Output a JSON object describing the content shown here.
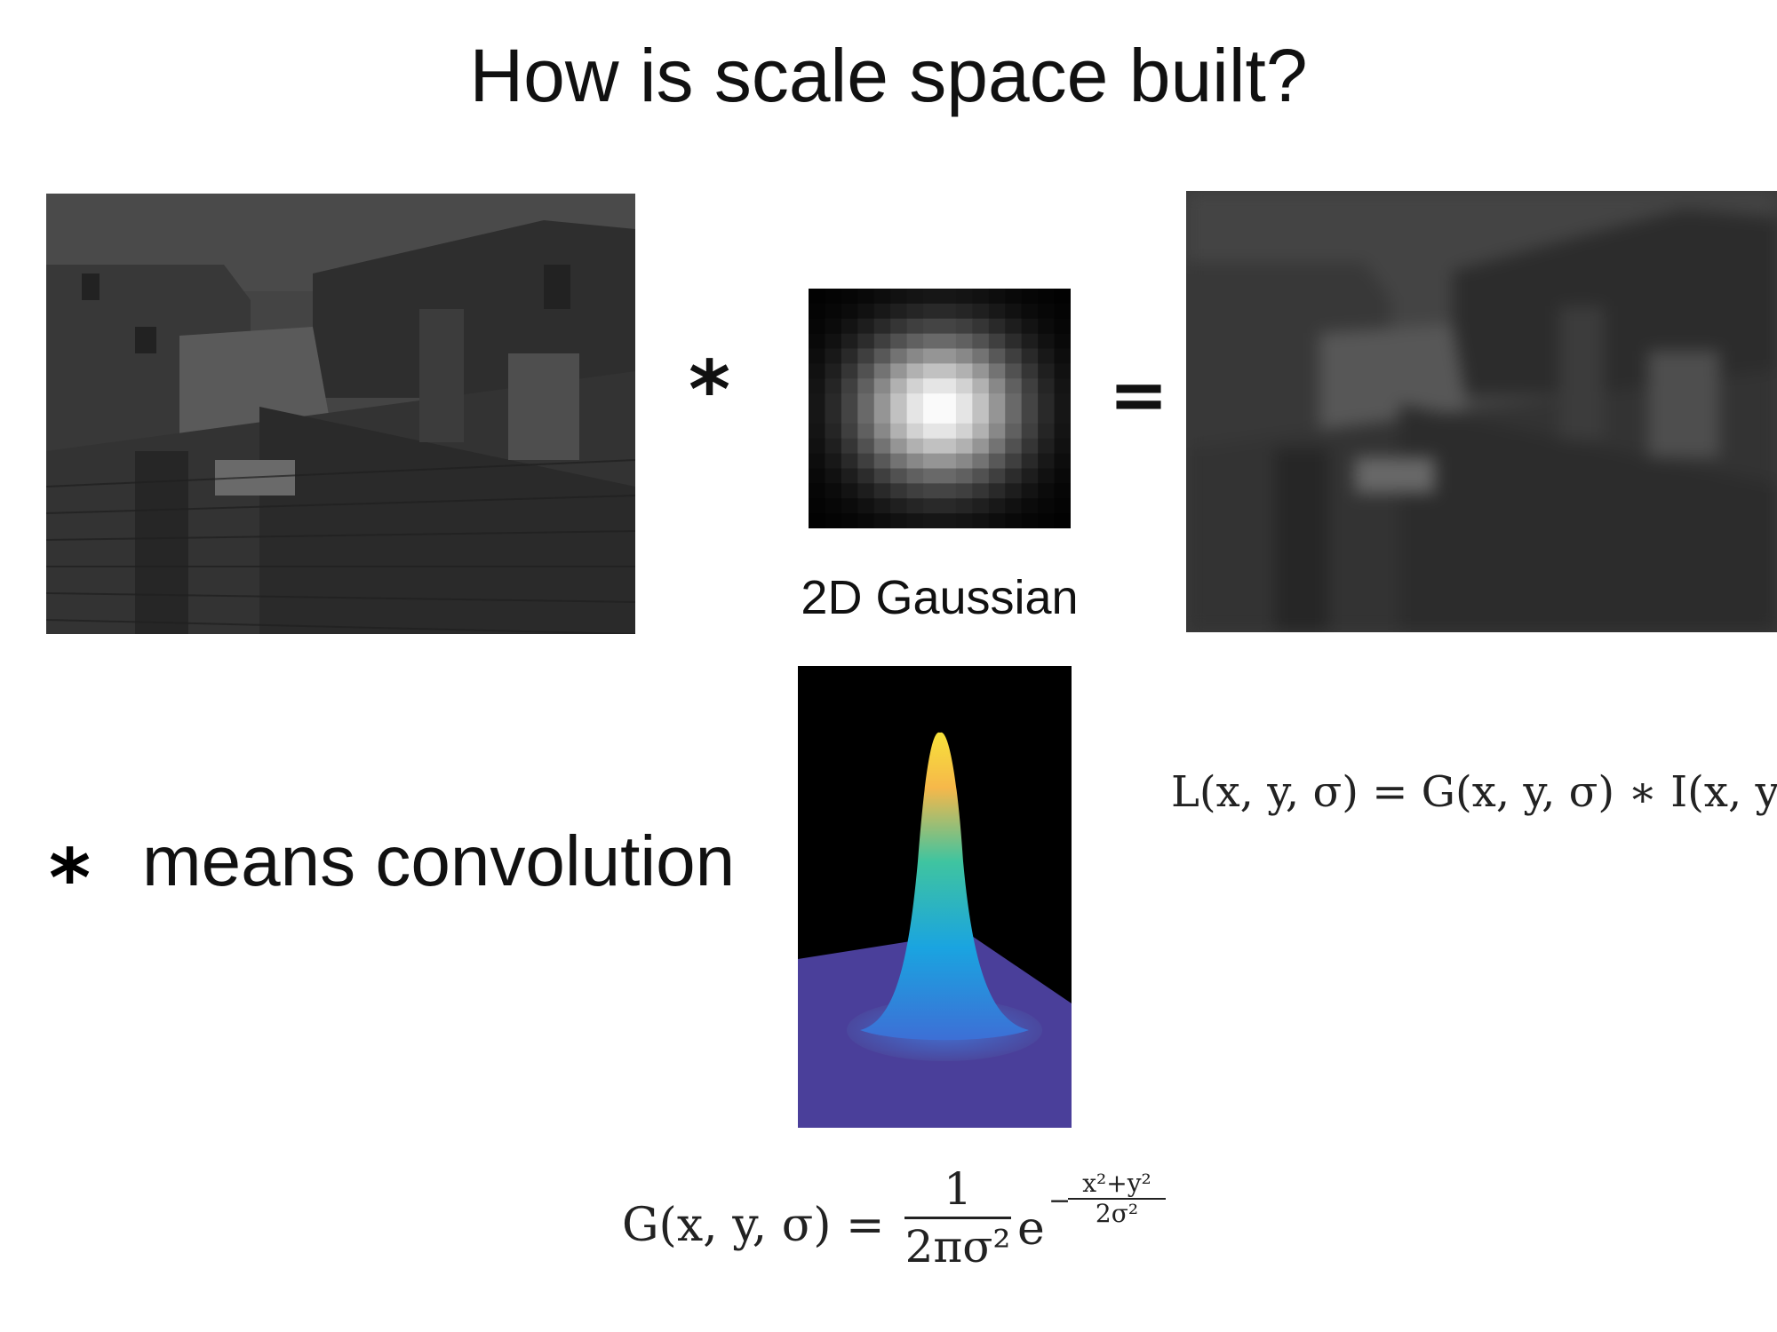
{
  "slide": {
    "title": "How is scale space built?",
    "operator_convolution": "*",
    "operator_equals": "=",
    "kernel_caption": "2D Gaussian",
    "legend_symbol": "*",
    "legend_text": "means convolution",
    "equation_L": "L(x, y, σ) = G(x, y, σ) ∗ I(x, y)",
    "equation_G": {
      "lhs": "G(x, y, σ) =",
      "numerator": "1",
      "denominator": "2πσ²",
      "base": "e",
      "exponent_sign": "−",
      "exponent_numerator": "x²+y²",
      "exponent_denominator": "2σ²"
    }
  }
}
